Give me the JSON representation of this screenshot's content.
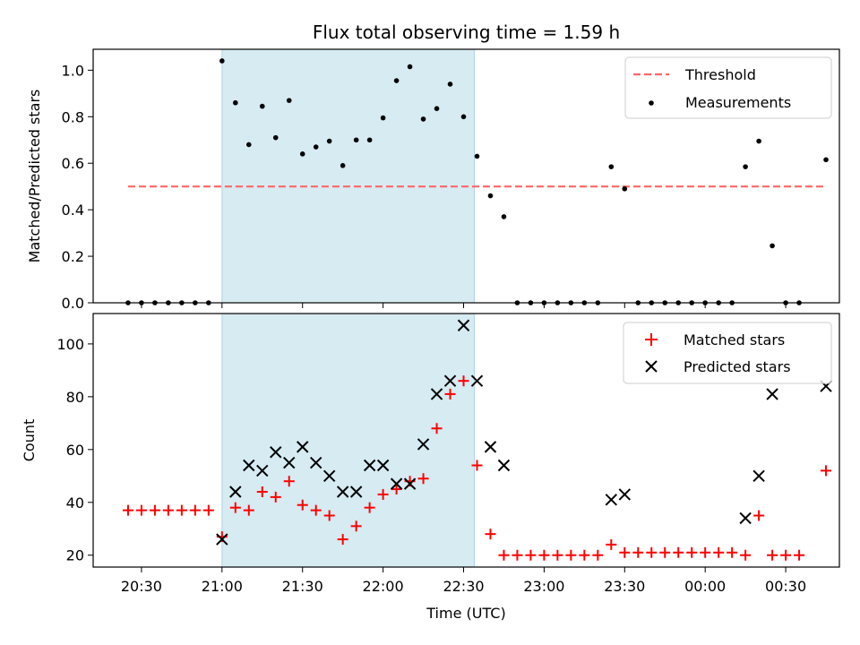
{
  "chart_data": [
    {
      "type": "scatter",
      "title": "Flux total observing time = 1.59 h",
      "ylabel": "Matched/Predicted stars",
      "xlabel": "",
      "xlim": [
        "20:12",
        "00:50"
      ],
      "ylim": [
        0,
        1.09
      ],
      "y_ticks": [
        "0.0",
        "0.2",
        "0.4",
        "0.6",
        "0.8",
        "1.0"
      ],
      "shaded_interval": {
        "start": "21:00",
        "end": "22:34",
        "color": "#add8e6"
      },
      "threshold": {
        "name": "Threshold",
        "value": 0.5,
        "x_start": "20:25",
        "x_end": "00:45",
        "color": "#ff6666"
      },
      "legend_position": "top-right",
      "series": [
        {
          "name": "Measurements",
          "marker": "dot",
          "color": "#000000",
          "x": [
            "20:25",
            "20:30",
            "20:35",
            "20:40",
            "20:45",
            "20:50",
            "20:55",
            "21:00",
            "21:05",
            "21:10",
            "21:15",
            "21:20",
            "21:25",
            "21:30",
            "21:35",
            "21:40",
            "21:45",
            "21:50",
            "21:55",
            "22:00",
            "22:05",
            "22:10",
            "22:15",
            "22:20",
            "22:25",
            "22:30",
            "22:35",
            "22:40",
            "22:45",
            "22:50",
            "22:55",
            "23:00",
            "23:05",
            "23:10",
            "23:15",
            "23:20",
            "23:25",
            "23:30",
            "23:35",
            "23:40",
            "23:45",
            "23:50",
            "23:55",
            "00:00",
            "00:05",
            "00:10",
            "00:15",
            "00:20",
            "00:25",
            "00:30",
            "00:35",
            "00:45"
          ],
          "y": [
            0,
            0,
            0,
            0,
            0,
            0,
            0,
            1.04,
            0.86,
            0.68,
            0.845,
            0.71,
            0.87,
            0.64,
            0.67,
            0.695,
            0.59,
            0.7,
            0.7,
            0.795,
            0.955,
            1.015,
            0.79,
            0.835,
            0.94,
            0.8,
            0.63,
            0.46,
            0.37,
            0,
            0,
            0,
            0,
            0,
            0,
            0,
            0.585,
            0.49,
            0,
            0,
            0,
            0,
            0,
            0,
            0,
            0,
            0.585,
            0.695,
            0.245,
            0,
            0,
            0.615
          ]
        }
      ]
    },
    {
      "type": "scatter",
      "title": "",
      "xlabel": "Time (UTC)",
      "ylabel": "Count",
      "xlim": [
        "20:12",
        "00:50"
      ],
      "ylim": [
        15.5,
        111.5
      ],
      "x_ticks": [
        "20:30",
        "21:00",
        "21:30",
        "22:00",
        "22:30",
        "23:00",
        "23:30",
        "00:00",
        "00:30"
      ],
      "y_ticks": [
        "20",
        "40",
        "60",
        "80",
        "100"
      ],
      "shaded_interval": {
        "start": "21:00",
        "end": "22:34",
        "color": "#add8e6"
      },
      "legend_position": "top-right",
      "series": [
        {
          "name": "Matched stars",
          "marker": "plus",
          "color": "#ff0000",
          "x": [
            "20:25",
            "20:30",
            "20:35",
            "20:40",
            "20:45",
            "20:50",
            "20:55",
            "21:00",
            "21:05",
            "21:10",
            "21:15",
            "21:20",
            "21:25",
            "21:30",
            "21:35",
            "21:40",
            "21:45",
            "21:50",
            "21:55",
            "22:00",
            "22:05",
            "22:10",
            "22:15",
            "22:20",
            "22:25",
            "22:30",
            "22:35",
            "22:40",
            "22:45",
            "22:50",
            "22:55",
            "23:00",
            "23:05",
            "23:10",
            "23:15",
            "23:20",
            "23:25",
            "23:30",
            "23:35",
            "23:40",
            "23:45",
            "23:50",
            "23:55",
            "00:00",
            "00:05",
            "00:10",
            "00:15",
            "00:20",
            "00:25",
            "00:30",
            "00:35",
            "00:45"
          ],
          "y": [
            37,
            37,
            37,
            37,
            37,
            37,
            37,
            27,
            38,
            37,
            44,
            42,
            48,
            39,
            37,
            35,
            26,
            31,
            38,
            43,
            45,
            48,
            49,
            68,
            81,
            86,
            54,
            28,
            20,
            20,
            20,
            20,
            20,
            20,
            20,
            20,
            24,
            21,
            21,
            21,
            21,
            21,
            21,
            21,
            21,
            21,
            20,
            35,
            20,
            20,
            20,
            52
          ]
        },
        {
          "name": "Predicted stars",
          "marker": "x",
          "color": "#000000",
          "x": [
            "21:00",
            "21:05",
            "21:10",
            "21:15",
            "21:20",
            "21:25",
            "21:30",
            "21:35",
            "21:40",
            "21:45",
            "21:50",
            "21:55",
            "22:00",
            "22:05",
            "22:10",
            "22:15",
            "22:20",
            "22:25",
            "22:30",
            "22:35",
            "22:40",
            "22:45",
            "23:25",
            "23:30",
            "00:15",
            "00:20",
            "00:25",
            "00:45"
          ],
          "y": [
            26,
            44,
            54,
            52,
            59,
            55,
            61,
            55,
            50,
            44,
            44,
            54,
            54,
            47,
            47,
            62,
            81,
            86,
            107,
            86,
            61,
            54,
            41,
            43,
            34,
            50,
            81,
            84
          ]
        }
      ]
    }
  ]
}
